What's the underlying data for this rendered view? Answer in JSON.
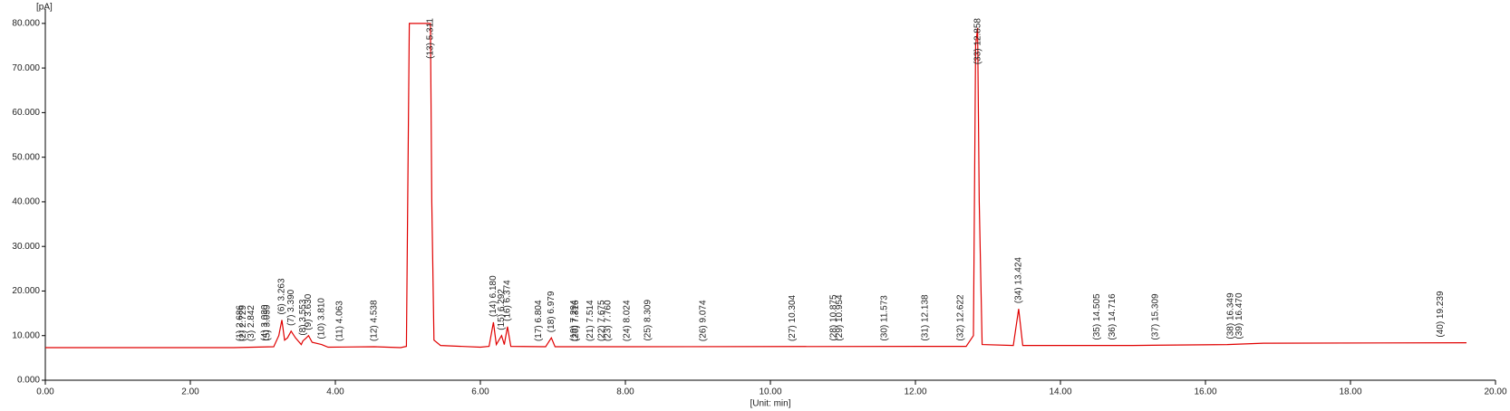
{
  "chart_data": {
    "type": "line",
    "ylabel": "[pA]",
    "xlabel": "[Unit: min]",
    "xlim": [
      0,
      20
    ],
    "ylim": [
      0,
      82
    ],
    "xticks": [
      {
        "value": 0,
        "label": "0.00"
      },
      {
        "value": 2,
        "label": "2.00"
      },
      {
        "value": 4,
        "label": "4.00"
      },
      {
        "value": 6,
        "label": "6.00"
      },
      {
        "value": 8,
        "label": "8.00"
      },
      {
        "value": 10,
        "label": "10.00"
      },
      {
        "value": 12,
        "label": "12.00"
      },
      {
        "value": 14,
        "label": "14.00"
      },
      {
        "value": 16,
        "label": "16.00"
      },
      {
        "value": 18,
        "label": "18.00"
      },
      {
        "value": 20,
        "label": "20.00"
      }
    ],
    "yticks": [
      {
        "value": 0,
        "label": "0.000"
      },
      {
        "value": 10,
        "label": "10.000"
      },
      {
        "value": 20,
        "label": "20.000"
      },
      {
        "value": 30,
        "label": "30.000"
      },
      {
        "value": 40,
        "label": "40.000"
      },
      {
        "value": 50,
        "label": "50.000"
      },
      {
        "value": 60,
        "label": "60.000"
      },
      {
        "value": 70,
        "label": "70.000"
      },
      {
        "value": 80,
        "label": "80.000"
      }
    ],
    "series": [
      {
        "color": "#e00000",
        "x": [
          0,
          2.6,
          3.15,
          3.22,
          3.263,
          3.3,
          3.34,
          3.39,
          3.45,
          3.53,
          3.553,
          3.6,
          3.63,
          3.68,
          3.81,
          3.9,
          4.538,
          4.9,
          4.98,
          5.02,
          5.3,
          5.311,
          5.33,
          5.36,
          5.45,
          6.0,
          6.12,
          6.18,
          6.22,
          6.292,
          6.33,
          6.374,
          6.42,
          6.9,
          6.979,
          7.03,
          8.0,
          12.7,
          12.8,
          12.83,
          12.858,
          12.88,
          12.92,
          13.35,
          13.424,
          13.48,
          15.0,
          16.3,
          16.8,
          19.6
        ],
        "values": [
          7.3,
          7.3,
          7.5,
          10,
          13.5,
          9,
          9.5,
          11,
          9.5,
          8,
          8.8,
          9.5,
          10,
          8.5,
          8,
          7.4,
          7.5,
          7.3,
          7.6,
          80,
          80,
          80,
          40,
          9,
          7.8,
          7.4,
          7.6,
          13,
          8,
          10,
          8,
          12,
          7.6,
          7.5,
          9.5,
          7.5,
          7.5,
          7.6,
          10,
          75,
          79,
          40,
          8,
          7.8,
          16,
          7.8,
          7.8,
          8,
          8.3,
          8.4
        ]
      }
    ],
    "peaks": [
      {
        "label": "(1) 2.686",
        "time": 2.686,
        "height": 7.5
      },
      {
        "label": "(2) 2.729",
        "time": 2.729,
        "height": 7.5
      },
      {
        "label": "(3) 2.842",
        "time": 2.842,
        "height": 7.5
      },
      {
        "label": "(4) 3.030",
        "time": 3.03,
        "height": 7.6
      },
      {
        "label": "(5) 3.059",
        "time": 3.059,
        "height": 7.6
      },
      {
        "label": "(6) 3.263",
        "time": 3.263,
        "height": 13.5
      },
      {
        "label": "(7) 3.390",
        "time": 3.39,
        "height": 11
      },
      {
        "label": "(8) 3.553",
        "time": 3.553,
        "height": 8.8
      },
      {
        "label": "(9) 3.630",
        "time": 3.63,
        "height": 10
      },
      {
        "label": "(10) 3.810",
        "time": 3.81,
        "height": 8
      },
      {
        "label": "(11) 4.063",
        "time": 4.063,
        "height": 7.5
      },
      {
        "label": "(12) 4.538",
        "time": 4.538,
        "height": 7.5
      },
      {
        "label": "(13) 5.311",
        "time": 5.311,
        "height": 80
      },
      {
        "label": "(14) 6.180",
        "time": 6.18,
        "height": 13
      },
      {
        "label": "(15) 6.292",
        "time": 6.292,
        "height": 10
      },
      {
        "label": "(16) 6.374",
        "time": 6.374,
        "height": 12
      },
      {
        "label": "(17) 6.804",
        "time": 6.804,
        "height": 7.5
      },
      {
        "label": "(18) 6.979",
        "time": 6.979,
        "height": 9.5
      },
      {
        "label": "(19) 7.294",
        "time": 7.294,
        "height": 7.5
      },
      {
        "label": "(20) 7.316",
        "time": 7.316,
        "height": 7.5
      },
      {
        "label": "(21) 7.514",
        "time": 7.514,
        "height": 7.5
      },
      {
        "label": "(22) 7.675",
        "time": 7.675,
        "height": 7.5
      },
      {
        "label": "(23) 7.760",
        "time": 7.76,
        "height": 7.5
      },
      {
        "label": "(24) 8.024",
        "time": 8.024,
        "height": 7.5
      },
      {
        "label": "(25) 8.309",
        "time": 8.309,
        "height": 7.6
      },
      {
        "label": "(26) 9.074",
        "time": 9.074,
        "height": 7.5
      },
      {
        "label": "(27) 10.304",
        "time": 10.304,
        "height": 7.5
      },
      {
        "label": "(28) 10.875",
        "time": 10.875,
        "height": 7.6
      },
      {
        "label": "(29) 10.954",
        "time": 10.954,
        "height": 7.6
      },
      {
        "label": "(30) 11.573",
        "time": 11.573,
        "height": 7.6
      },
      {
        "label": "(31) 12.138",
        "time": 12.138,
        "height": 7.6
      },
      {
        "label": "(32) 12.622",
        "time": 12.622,
        "height": 7.6
      },
      {
        "label": "(33) 12.858",
        "time": 12.858,
        "height": 79
      },
      {
        "label": "(34) 13.424",
        "time": 13.424,
        "height": 16
      },
      {
        "label": "(35) 14.505",
        "time": 14.505,
        "height": 7.8
      },
      {
        "label": "(36) 14.716",
        "time": 14.716,
        "height": 7.8
      },
      {
        "label": "(37) 15.309",
        "time": 15.309,
        "height": 7.8
      },
      {
        "label": "(38) 16.349",
        "time": 16.349,
        "height": 8
      },
      {
        "label": "(39) 16.470",
        "time": 16.47,
        "height": 8
      },
      {
        "label": "(40) 19.239",
        "time": 19.239,
        "height": 8.4
      }
    ]
  }
}
